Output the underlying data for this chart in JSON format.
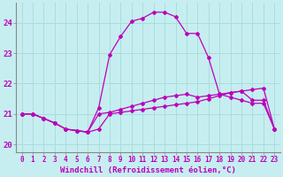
{
  "xlabel": "Windchill (Refroidissement éolien,°C)",
  "x_ticks": [
    0,
    1,
    2,
    3,
    4,
    5,
    6,
    7,
    8,
    9,
    10,
    11,
    12,
    13,
    14,
    15,
    16,
    17,
    18,
    19,
    20,
    21,
    22,
    23
  ],
  "ylim": [
    19.75,
    24.65
  ],
  "yticks": [
    20,
    21,
    22,
    23,
    24
  ],
  "background_color": "#c6eef0",
  "grid_color": "#aadddd",
  "line_color": "#bb00bb",
  "line1": [
    21.0,
    21.0,
    20.85,
    20.7,
    20.5,
    20.45,
    20.4,
    20.5,
    21.0,
    21.05,
    21.1,
    21.15,
    21.2,
    21.25,
    21.3,
    21.35,
    21.4,
    21.5,
    21.6,
    21.7,
    21.75,
    21.8,
    21.85,
    20.5
  ],
  "line2": [
    21.0,
    21.0,
    20.85,
    20.7,
    20.5,
    20.45,
    20.4,
    21.0,
    21.05,
    21.15,
    21.25,
    21.35,
    21.45,
    21.55,
    21.6,
    21.65,
    21.55,
    21.6,
    21.65,
    21.7,
    21.75,
    21.45,
    21.45,
    20.5
  ],
  "line3": [
    21.0,
    21.0,
    20.85,
    20.7,
    20.5,
    20.45,
    20.4,
    21.2,
    22.95,
    23.55,
    24.05,
    24.15,
    24.35,
    24.35,
    24.2,
    23.65,
    23.65,
    22.85,
    21.65,
    21.55,
    21.45,
    21.35,
    21.35,
    20.5
  ],
  "spine_color": "#888888",
  "tick_fontsize": 5.5,
  "ylabel_fontsize": 6.5,
  "xlabel_fontsize": 6.5
}
